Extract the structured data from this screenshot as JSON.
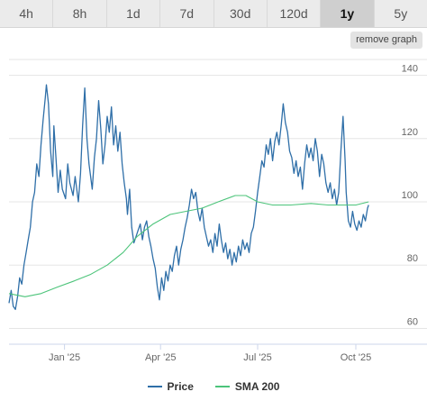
{
  "tabs": [
    {
      "label": "4h",
      "active": false
    },
    {
      "label": "8h",
      "active": false
    },
    {
      "label": "1d",
      "active": false
    },
    {
      "label": "7d",
      "active": false
    },
    {
      "label": "30d",
      "active": false
    },
    {
      "label": "120d",
      "active": false
    },
    {
      "label": "1y",
      "active": true
    },
    {
      "label": "5y",
      "active": false
    }
  ],
  "remove_graph_label": "remove graph",
  "colors": {
    "price": "#2f6fa8",
    "sma": "#4cc47a",
    "grid": "#e6e6e6",
    "axis": "#ccd6eb",
    "label": "#666666"
  },
  "chart_data": {
    "type": "line",
    "title": "",
    "xlabel": "",
    "ylabel": "",
    "x_range": [
      "2024-11-10",
      "2025-11-08"
    ],
    "ylim": [
      55,
      145
    ],
    "y_ticks": [
      60,
      80,
      100,
      120,
      140
    ],
    "x_ticks": [
      {
        "label": "Jan '25",
        "date": "2025-01-01"
      },
      {
        "label": "Apr '25",
        "date": "2025-04-01"
      },
      {
        "label": "Jul '25",
        "date": "2025-07-01"
      },
      {
        "label": "Oct '25",
        "date": "2025-10-01"
      }
    ],
    "grid": true,
    "legend": "bottom-center",
    "series": [
      {
        "name": "Price",
        "points": [
          [
            "2024-11-10",
            68
          ],
          [
            "2024-11-12",
            72
          ],
          [
            "2024-11-14",
            67
          ],
          [
            "2024-11-16",
            66
          ],
          [
            "2024-11-18",
            70
          ],
          [
            "2024-11-20",
            76
          ],
          [
            "2024-11-22",
            74
          ],
          [
            "2024-11-24",
            80
          ],
          [
            "2024-11-26",
            84
          ],
          [
            "2024-11-28",
            88
          ],
          [
            "2024-11-30",
            92
          ],
          [
            "2024-12-02",
            100
          ],
          [
            "2024-12-04",
            103
          ],
          [
            "2024-12-06",
            112
          ],
          [
            "2024-12-08",
            108
          ],
          [
            "2024-12-10",
            118
          ],
          [
            "2024-12-12",
            126
          ],
          [
            "2024-12-14",
            133
          ],
          [
            "2024-12-15",
            137
          ],
          [
            "2024-12-17",
            131
          ],
          [
            "2024-12-19",
            116
          ],
          [
            "2024-12-21",
            108
          ],
          [
            "2024-12-22",
            124
          ],
          [
            "2024-12-24",
            114
          ],
          [
            "2024-12-26",
            103
          ],
          [
            "2024-12-28",
            110
          ],
          [
            "2024-12-30",
            104
          ],
          [
            "2025-01-02",
            101
          ],
          [
            "2025-01-04",
            112
          ],
          [
            "2025-01-06",
            106
          ],
          [
            "2025-01-09",
            102
          ],
          [
            "2025-01-11",
            108
          ],
          [
            "2025-01-14",
            100
          ],
          [
            "2025-01-16",
            109
          ],
          [
            "2025-01-18",
            124
          ],
          [
            "2025-01-20",
            136
          ],
          [
            "2025-01-22",
            120
          ],
          [
            "2025-01-24",
            112
          ],
          [
            "2025-01-27",
            104
          ],
          [
            "2025-01-29",
            114
          ],
          [
            "2025-01-31",
            120
          ],
          [
            "2025-02-02",
            132
          ],
          [
            "2025-02-04",
            123
          ],
          [
            "2025-02-06",
            112
          ],
          [
            "2025-02-08",
            118
          ],
          [
            "2025-02-10",
            127
          ],
          [
            "2025-02-12",
            122
          ],
          [
            "2025-02-14",
            130
          ],
          [
            "2025-02-16",
            118
          ],
          [
            "2025-02-18",
            124
          ],
          [
            "2025-02-20",
            116
          ],
          [
            "2025-02-22",
            122
          ],
          [
            "2025-02-24",
            112
          ],
          [
            "2025-02-26",
            106
          ],
          [
            "2025-02-28",
            101
          ],
          [
            "2025-03-01",
            96
          ],
          [
            "2025-03-03",
            104
          ],
          [
            "2025-03-05",
            92
          ],
          [
            "2025-03-07",
            87
          ],
          [
            "2025-03-09",
            89
          ],
          [
            "2025-03-11",
            91
          ],
          [
            "2025-03-13",
            93
          ],
          [
            "2025-03-15",
            88
          ],
          [
            "2025-03-17",
            92
          ],
          [
            "2025-03-19",
            94
          ],
          [
            "2025-03-21",
            89
          ],
          [
            "2025-03-23",
            86
          ],
          [
            "2025-03-25",
            82
          ],
          [
            "2025-03-27",
            79
          ],
          [
            "2025-03-29",
            73
          ],
          [
            "2025-03-31",
            69
          ],
          [
            "2025-04-02",
            76
          ],
          [
            "2025-04-04",
            72
          ],
          [
            "2025-04-06",
            78
          ],
          [
            "2025-04-08",
            75
          ],
          [
            "2025-04-10",
            80
          ],
          [
            "2025-04-12",
            78
          ],
          [
            "2025-04-14",
            83
          ],
          [
            "2025-04-16",
            86
          ],
          [
            "2025-04-18",
            80
          ],
          [
            "2025-04-20",
            85
          ],
          [
            "2025-04-22",
            88
          ],
          [
            "2025-04-24",
            92
          ],
          [
            "2025-04-26",
            95
          ],
          [
            "2025-04-28",
            99
          ],
          [
            "2025-04-30",
            104
          ],
          [
            "2025-05-02",
            101
          ],
          [
            "2025-05-04",
            103
          ],
          [
            "2025-05-06",
            97
          ],
          [
            "2025-05-08",
            94
          ],
          [
            "2025-05-10",
            98
          ],
          [
            "2025-05-12",
            92
          ],
          [
            "2025-05-14",
            89
          ],
          [
            "2025-05-16",
            86
          ],
          [
            "2025-05-18",
            88
          ],
          [
            "2025-05-20",
            84
          ],
          [
            "2025-05-22",
            90
          ],
          [
            "2025-05-24",
            86
          ],
          [
            "2025-05-26",
            93
          ],
          [
            "2025-05-28",
            88
          ],
          [
            "2025-05-30",
            84
          ],
          [
            "2025-06-01",
            87
          ],
          [
            "2025-06-03",
            82
          ],
          [
            "2025-06-05",
            85
          ],
          [
            "2025-06-07",
            80
          ],
          [
            "2025-06-09",
            84
          ],
          [
            "2025-06-11",
            81
          ],
          [
            "2025-06-13",
            86
          ],
          [
            "2025-06-15",
            83
          ],
          [
            "2025-06-17",
            88
          ],
          [
            "2025-06-19",
            85
          ],
          [
            "2025-06-21",
            87
          ],
          [
            "2025-06-23",
            84
          ],
          [
            "2025-06-25",
            90
          ],
          [
            "2025-06-27",
            92
          ],
          [
            "2025-06-29",
            97
          ],
          [
            "2025-07-01",
            103
          ],
          [
            "2025-07-03",
            108
          ],
          [
            "2025-07-05",
            113
          ],
          [
            "2025-07-07",
            111
          ],
          [
            "2025-07-09",
            118
          ],
          [
            "2025-07-11",
            115
          ],
          [
            "2025-07-13",
            120
          ],
          [
            "2025-07-15",
            113
          ],
          [
            "2025-07-17",
            119
          ],
          [
            "2025-07-19",
            122
          ],
          [
            "2025-07-21",
            118
          ],
          [
            "2025-07-23",
            124
          ],
          [
            "2025-07-25",
            131
          ],
          [
            "2025-07-27",
            125
          ],
          [
            "2025-07-29",
            122
          ],
          [
            "2025-07-31",
            116
          ],
          [
            "2025-08-02",
            114
          ],
          [
            "2025-08-04",
            109
          ],
          [
            "2025-08-06",
            113
          ],
          [
            "2025-08-08",
            108
          ],
          [
            "2025-08-10",
            111
          ],
          [
            "2025-08-12",
            104
          ],
          [
            "2025-08-14",
            112
          ],
          [
            "2025-08-16",
            118
          ],
          [
            "2025-08-18",
            114
          ],
          [
            "2025-08-20",
            117
          ],
          [
            "2025-08-22",
            113
          ],
          [
            "2025-08-24",
            120
          ],
          [
            "2025-08-26",
            116
          ],
          [
            "2025-08-28",
            108
          ],
          [
            "2025-08-30",
            115
          ],
          [
            "2025-09-01",
            112
          ],
          [
            "2025-09-03",
            106
          ],
          [
            "2025-09-05",
            103
          ],
          [
            "2025-09-07",
            106
          ],
          [
            "2025-09-09",
            101
          ],
          [
            "2025-09-11",
            104
          ],
          [
            "2025-09-13",
            99
          ],
          [
            "2025-09-15",
            103
          ],
          [
            "2025-09-17",
            116
          ],
          [
            "2025-09-19",
            127
          ],
          [
            "2025-09-21",
            113
          ],
          [
            "2025-09-22",
            103
          ],
          [
            "2025-09-24",
            94
          ],
          [
            "2025-09-26",
            92
          ],
          [
            "2025-09-28",
            97
          ],
          [
            "2025-09-30",
            93
          ],
          [
            "2025-10-02",
            91
          ],
          [
            "2025-10-04",
            94
          ],
          [
            "2025-10-06",
            92
          ],
          [
            "2025-10-08",
            96
          ],
          [
            "2025-10-10",
            94
          ],
          [
            "2025-10-12",
            98
          ],
          [
            "2025-10-13",
            99
          ]
        ]
      },
      {
        "name": "SMA 200",
        "points": [
          [
            "2024-11-10",
            71
          ],
          [
            "2024-11-25",
            70
          ],
          [
            "2024-12-10",
            71
          ],
          [
            "2024-12-25",
            73
          ],
          [
            "2025-01-10",
            75
          ],
          [
            "2025-01-25",
            77
          ],
          [
            "2025-02-10",
            80
          ],
          [
            "2025-02-25",
            84
          ],
          [
            "2025-03-10",
            89
          ],
          [
            "2025-03-25",
            93
          ],
          [
            "2025-04-10",
            96
          ],
          [
            "2025-04-25",
            97
          ],
          [
            "2025-05-10",
            98
          ],
          [
            "2025-05-25",
            100
          ],
          [
            "2025-06-10",
            102
          ],
          [
            "2025-06-20",
            102
          ],
          [
            "2025-07-01",
            100
          ],
          [
            "2025-07-15",
            99
          ],
          [
            "2025-08-01",
            99
          ],
          [
            "2025-08-20",
            99.5
          ],
          [
            "2025-09-05",
            99
          ],
          [
            "2025-09-20",
            99
          ],
          [
            "2025-10-01",
            99
          ],
          [
            "2025-10-13",
            100
          ]
        ]
      }
    ]
  },
  "legend": {
    "price_label": "Price",
    "sma_label": "SMA 200"
  }
}
